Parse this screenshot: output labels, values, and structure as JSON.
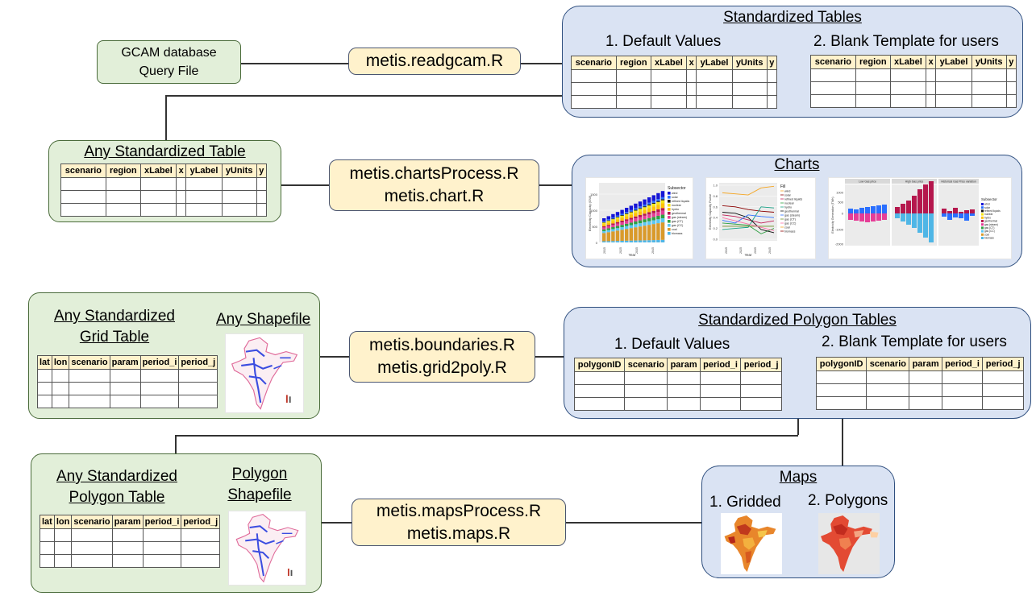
{
  "gcam_box": {
    "line1": "GCAM database",
    "line2": "Query File"
  },
  "fn_readgcam": "metis.readgcam.R",
  "std_tables": {
    "title": "Standardized Tables",
    "default_label": "1. Default Values",
    "blank_label": "2. Blank Template for users",
    "columns": [
      "scenario",
      "region",
      "xLabel",
      "x",
      "yLabel",
      "yUnits",
      "y"
    ]
  },
  "any_std_table": {
    "title": "Any Standardized Table",
    "columns": [
      "scenario",
      "region",
      "xLabel",
      "x",
      "yLabel",
      "yUnits",
      "y"
    ]
  },
  "fn_charts": {
    "line1": "metis.chartsProcess.R",
    "line2": "metis.chart.R"
  },
  "charts": {
    "title": "Charts",
    "chart1": {
      "ylabel": "Electricity Capacity (GW)",
      "xlabel": "Year",
      "legend_title": "Subsector",
      "years": [
        "2015",
        "2025",
        "2035",
        "2045"
      ],
      "yticks": [
        "0",
        "500",
        "1000",
        "1500"
      ]
    },
    "chart2": {
      "ylabel": "Electricity Capacity Factor",
      "xlabel": "Year",
      "legend_title": "Fill",
      "years": [
        "2015",
        "2025",
        "2035",
        "2045"
      ],
      "yticks": [
        "0.0",
        "0.2",
        "0.4",
        "0.6",
        "0.8",
        "1.0"
      ]
    },
    "chart3": {
      "ylabel": "Electricity Generation (TWh)",
      "legend_title": "Subsector",
      "facets": [
        "Low Gas price",
        "High Gas price",
        "Historical Gas Price variation"
      ],
      "yticks": [
        "1000",
        "500",
        "0",
        "-1000",
        "-2000"
      ]
    },
    "legend_items": [
      "wind",
      "solar",
      "refined liquids",
      "nuclear",
      "hydro",
      "geothermal",
      "gas (steam)",
      "gas (CT)",
      "gas (CC)",
      "coal",
      "biomass"
    ],
    "legend_colors": [
      "#1515d6",
      "#2a6fff",
      "#141414",
      "#f5e616",
      "#ffc107",
      "#b5174d",
      "#e63d97",
      "#2ea042",
      "#5cc7f2",
      "#d99a2b",
      "#4fb6e6"
    ]
  },
  "grid_box": {
    "title_line1": "Any Standardized",
    "title_line2": "Grid Table",
    "shapefile_title": "Any Shapefile",
    "columns": [
      "lat",
      "lon",
      "scenario",
      "param",
      "period_i",
      "period_j"
    ]
  },
  "fn_boundaries": {
    "line1": "metis.boundaries.R",
    "line2": "metis.grid2poly.R"
  },
  "std_poly": {
    "title": "Standardized Polygon Tables",
    "default_label": "1. Default Values",
    "blank_label": "2. Blank Template for users",
    "columns": [
      "polygonID",
      "scenario",
      "param",
      "period_i",
      "period_j"
    ]
  },
  "poly_box": {
    "title_line1": "Any Standardized",
    "title_line2": "Polygon Table",
    "shapefile_line1": "Polygon",
    "shapefile_line2": "Shapefile",
    "columns": [
      "lat",
      "lon",
      "scenario",
      "param",
      "period_i",
      "period_j"
    ]
  },
  "fn_maps": {
    "line1": "metis.mapsProcess.R",
    "line2": "metis.maps.R"
  },
  "maps": {
    "title": "Maps",
    "gridded_label": "1. Gridded",
    "polygons_label": "2. Polygons"
  }
}
